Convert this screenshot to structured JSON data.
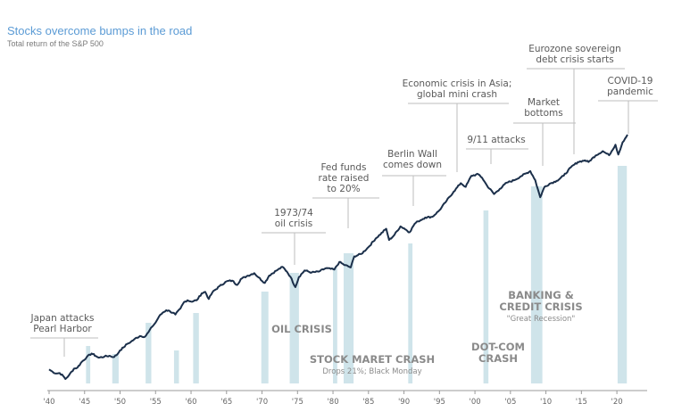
{
  "chart_data": {
    "type": "line",
    "title": "Stocks overcome bumps in the road",
    "subtitle": "Total return of the S&P 500",
    "xlim": [
      1940,
      2022
    ],
    "x_ticks": [
      "'40",
      "'45",
      "'50",
      "'55",
      "'60",
      "'65",
      "'70",
      "'75",
      "'80",
      "'85",
      "'90",
      "'95",
      "'00",
      "'05",
      "'10",
      "'15",
      "'20"
    ],
    "x_tick_years": [
      1940,
      1945,
      1950,
      1955,
      1960,
      1965,
      1970,
      1975,
      1980,
      1985,
      1990,
      1995,
      2000,
      2005,
      2010,
      2015,
      2020
    ],
    "y_scale": "log",
    "grid": false,
    "series": [
      {
        "values_relative": [
          [
            1940.0,
            1.0
          ],
          [
            1940.5,
            0.94
          ],
          [
            1941.0,
            0.9
          ],
          [
            1941.5,
            0.91
          ],
          [
            1942.0,
            0.84
          ],
          [
            1942.3,
            0.78
          ],
          [
            1942.8,
            0.86
          ],
          [
            1943.5,
            1.02
          ],
          [
            1944.0,
            1.05
          ],
          [
            1944.6,
            1.22
          ],
          [
            1945.3,
            1.38
          ],
          [
            1946.0,
            1.52
          ],
          [
            1946.6,
            1.42
          ],
          [
            1947.0,
            1.36
          ],
          [
            1947.8,
            1.4
          ],
          [
            1948.5,
            1.43
          ],
          [
            1949.0,
            1.38
          ],
          [
            1949.5,
            1.45
          ],
          [
            1950.0,
            1.65
          ],
          [
            1950.5,
            1.78
          ],
          [
            1951.0,
            1.95
          ],
          [
            1951.5,
            2.05
          ],
          [
            1952.0,
            2.2
          ],
          [
            1952.8,
            2.4
          ],
          [
            1953.5,
            2.35
          ],
          [
            1954.0,
            2.65
          ],
          [
            1954.5,
            3.05
          ],
          [
            1955.0,
            3.4
          ],
          [
            1955.5,
            4.0
          ],
          [
            1956.0,
            4.4
          ],
          [
            1956.5,
            4.7
          ],
          [
            1957.0,
            4.6
          ],
          [
            1957.8,
            4.2
          ],
          [
            1958.5,
            4.9
          ],
          [
            1959.0,
            5.8
          ],
          [
            1959.5,
            6.1
          ],
          [
            1960.0,
            5.9
          ],
          [
            1960.8,
            6.1
          ],
          [
            1961.5,
            7.3
          ],
          [
            1962.0,
            7.6
          ],
          [
            1962.5,
            6.3
          ],
          [
            1963.0,
            7.5
          ],
          [
            1964.0,
            8.8
          ],
          [
            1965.0,
            10.0
          ],
          [
            1965.8,
            10.2
          ],
          [
            1966.5,
            9.1
          ],
          [
            1967.0,
            10.6
          ],
          [
            1968.0,
            11.6
          ],
          [
            1968.9,
            12.4
          ],
          [
            1969.5,
            11.1
          ],
          [
            1970.4,
            9.6
          ],
          [
            1971.0,
            11.6
          ],
          [
            1972.0,
            13.2
          ],
          [
            1972.9,
            14.6
          ],
          [
            1973.5,
            12.9
          ],
          [
            1974.0,
            11.3
          ],
          [
            1974.7,
            8.6
          ],
          [
            1975.2,
            11.2
          ],
          [
            1976.0,
            13.3
          ],
          [
            1977.0,
            12.6
          ],
          [
            1978.0,
            12.9
          ],
          [
            1979.0,
            14.1
          ],
          [
            1980.2,
            13.6
          ],
          [
            1980.9,
            16.6
          ],
          [
            1981.5,
            15.5
          ],
          [
            1982.5,
            14.4
          ],
          [
            1983.0,
            19.2
          ],
          [
            1984.0,
            20.5
          ],
          [
            1985.0,
            24.5
          ],
          [
            1986.0,
            30.5
          ],
          [
            1987.5,
            39.5
          ],
          [
            1987.9,
            29.5
          ],
          [
            1988.5,
            32.5
          ],
          [
            1989.5,
            42.0
          ],
          [
            1990.0,
            40.0
          ],
          [
            1990.8,
            36.0
          ],
          [
            1991.5,
            45.0
          ],
          [
            1992.0,
            48.0
          ],
          [
            1993.0,
            53.0
          ],
          [
            1994.0,
            54.0
          ],
          [
            1995.0,
            64.0
          ],
          [
            1996.0,
            82.0
          ],
          [
            1997.0,
            104.0
          ],
          [
            1998.0,
            130.0
          ],
          [
            1998.7,
            118.0
          ],
          [
            1999.5,
            158.0
          ],
          [
            2000.5,
            164.0
          ],
          [
            2001.0,
            150.0
          ],
          [
            2001.7,
            122.0
          ],
          [
            2002.7,
            98.0
          ],
          [
            2003.5,
            112.0
          ],
          [
            2004.5,
            132.0
          ],
          [
            2005.5,
            140.0
          ],
          [
            2006.5,
            156.0
          ],
          [
            2007.8,
            178.0
          ],
          [
            2008.5,
            140.0
          ],
          [
            2009.2,
            90.0
          ],
          [
            2009.8,
            118.0
          ],
          [
            2010.5,
            128.0
          ],
          [
            2011.5,
            138.0
          ],
          [
            2012.5,
            158.0
          ],
          [
            2013.5,
            196.0
          ],
          [
            2014.5,
            226.0
          ],
          [
            2015.5,
            236.0
          ],
          [
            2016.0,
            226.0
          ],
          [
            2017.0,
            268.0
          ],
          [
            2018.0,
            300.0
          ],
          [
            2018.9,
            270.0
          ],
          [
            2019.8,
            355.0
          ],
          [
            2020.2,
            275.0
          ],
          [
            2020.8,
            378.0
          ],
          [
            2021.5,
            462.0
          ]
        ]
      }
    ],
    "recession_bands": [
      [
        1945.2,
        1945.8
      ],
      [
        1948.9,
        1949.8
      ],
      [
        1953.6,
        1954.4
      ],
      [
        1957.6,
        1958.3
      ],
      [
        1960.3,
        1961.1
      ],
      [
        1969.9,
        1970.9
      ],
      [
        1973.9,
        1975.2
      ],
      [
        1980.0,
        1980.6
      ],
      [
        1981.5,
        1982.9
      ],
      [
        1990.6,
        1991.2
      ],
      [
        2001.2,
        2001.9
      ],
      [
        2007.9,
        2009.5
      ],
      [
        2020.1,
        2021.4
      ]
    ],
    "annotations": [
      {
        "id": "pearl-harbor",
        "lines": [
          "Japan attacks",
          "Pearl Harbor"
        ]
      },
      {
        "id": "oil-crisis-1973",
        "lines": [
          "1973/74",
          "oil crisis"
        ]
      },
      {
        "id": "fed-funds",
        "lines": [
          "Fed funds",
          "rate raised",
          "to 20%"
        ]
      },
      {
        "id": "berlin-wall",
        "lines": [
          "Berlin Wall",
          "comes down"
        ]
      },
      {
        "id": "asia-crisis",
        "lines": [
          "Economic crisis in Asia;",
          "global mini crash"
        ]
      },
      {
        "id": "nine-eleven",
        "lines": [
          "9/11 attacks"
        ]
      },
      {
        "id": "market-bottoms",
        "lines": [
          "Market",
          "bottoms"
        ]
      },
      {
        "id": "eurozone",
        "lines": [
          "Eurozone sovereign",
          "debt crisis starts"
        ]
      },
      {
        "id": "covid",
        "lines": [
          "COVID-19",
          "pandemic"
        ]
      }
    ],
    "crisis_labels": [
      {
        "id": "oil-crisis",
        "lines": [
          "OIL CRISIS"
        ],
        "sub": ""
      },
      {
        "id": "stock-crash",
        "lines": [
          "STOCK MARET CRASH"
        ],
        "sub": "Drops 21%; Black Monday"
      },
      {
        "id": "dot-com",
        "lines": [
          "DOT-COM",
          "CRASH"
        ],
        "sub": ""
      },
      {
        "id": "banking",
        "lines": [
          "BANKING &",
          "CREDIT CRISIS"
        ],
        "sub": "\"Great Recession\""
      }
    ],
    "colors": {
      "line": "#1b2f4a",
      "band": "#cfe4ea",
      "title": "#5b9bd5",
      "annotation_line": "#bdbdbd",
      "axis": "#9a9a9a"
    }
  }
}
